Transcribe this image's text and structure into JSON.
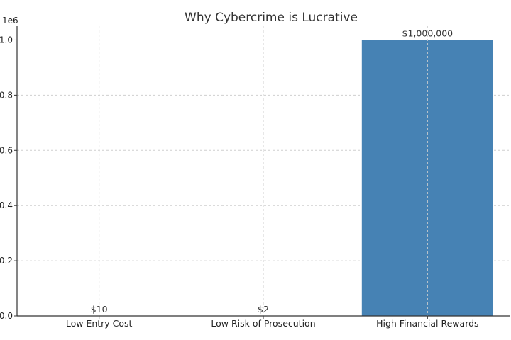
{
  "chart_data": {
    "type": "bar",
    "title": "Why Cybercrime is Lucrative",
    "categories": [
      "Low Entry Cost",
      "Low Risk of Prosecution",
      "High Financial Rewards"
    ],
    "values": [
      10,
      2,
      1000000
    ],
    "data_labels": [
      "$10",
      "$2",
      "$1,000,000"
    ],
    "xlabel": "",
    "ylabel": "",
    "ylim": [
      0,
      1050000
    ],
    "y_ticks": [
      0,
      200000,
      400000,
      600000,
      800000,
      1000000
    ],
    "y_tick_labels": [
      "0.0",
      "0.2",
      "0.4",
      "0.6",
      "0.8",
      "1.0"
    ],
    "y_offset_label": "1e6",
    "grid": true,
    "bar_color": "#4682B4"
  }
}
